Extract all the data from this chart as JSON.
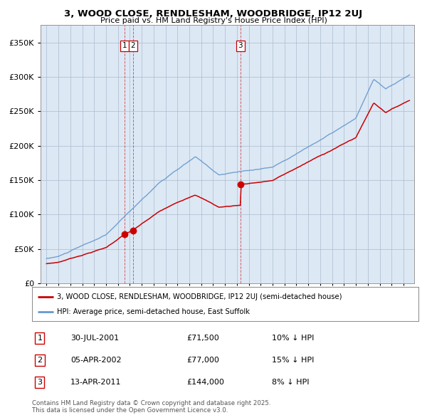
{
  "title_line1": "3, WOOD CLOSE, RENDLESHAM, WOODBRIDGE, IP12 2UJ",
  "title_line2": "Price paid vs. HM Land Registry's House Price Index (HPI)",
  "property_label": "3, WOOD CLOSE, RENDLESHAM, WOODBRIDGE, IP12 2UJ (semi-detached house)",
  "hpi_label": "HPI: Average price, semi-detached house, East Suffolk",
  "sale_color": "#cc0000",
  "hpi_color": "#6699cc",
  "chart_bg": "#dde8f5",
  "transactions": [
    {
      "num": 1,
      "date": "30-JUL-2001",
      "price": 71500,
      "year": 2001.58,
      "pct": "10% ↓ HPI"
    },
    {
      "num": 2,
      "date": "05-APR-2002",
      "price": 77000,
      "year": 2002.27,
      "pct": "15% ↓ HPI"
    },
    {
      "num": 3,
      "date": "13-APR-2011",
      "price": 144000,
      "year": 2011.29,
      "pct": "8% ↓ HPI"
    }
  ],
  "yticks": [
    0,
    50000,
    100000,
    150000,
    200000,
    250000,
    300000,
    350000
  ],
  "ylim": [
    0,
    375000
  ],
  "xlim": [
    1994.5,
    2025.9
  ],
  "footer": "Contains HM Land Registry data © Crown copyright and database right 2025.\nThis data is licensed under the Open Government Licence v3.0.",
  "background_color": "#ffffff",
  "grid_color": "#aabbcc"
}
